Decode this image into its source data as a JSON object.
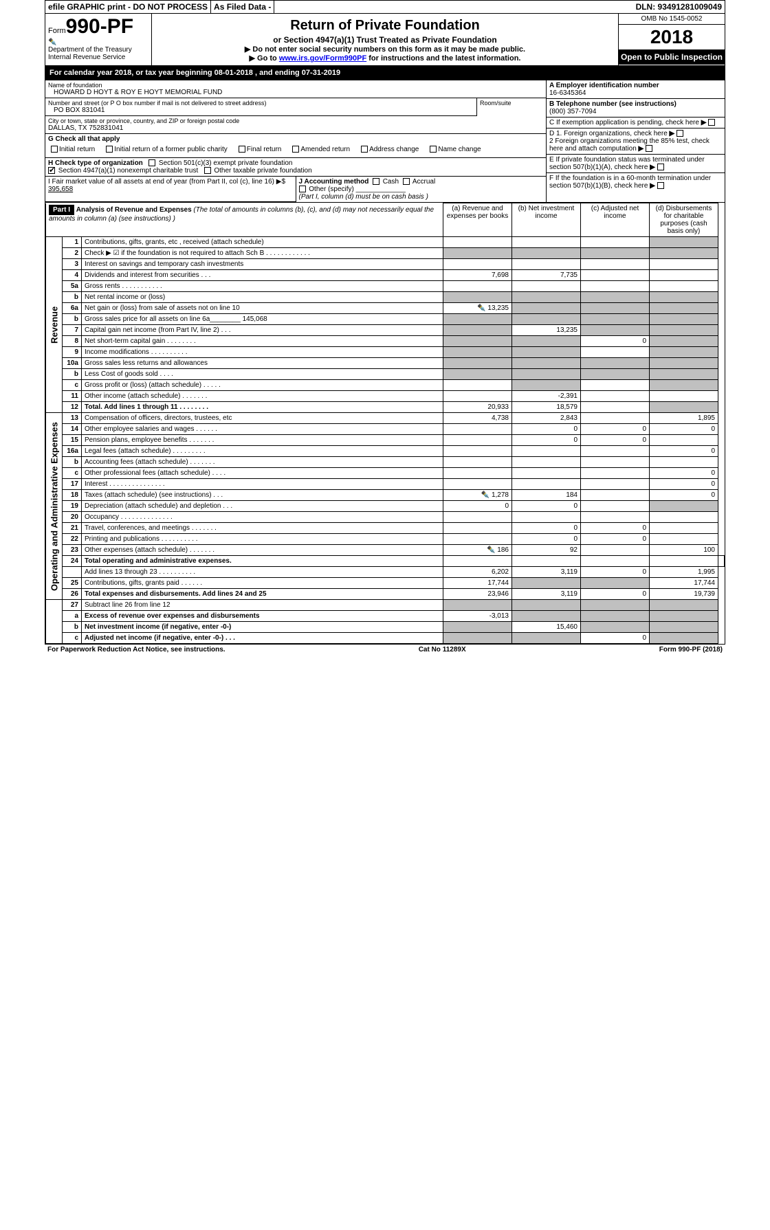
{
  "topbar": {
    "efile": "efile GRAPHIC print - DO NOT PROCESS",
    "asfiled": "As Filed Data -",
    "dln": "DLN: 93491281009049"
  },
  "header": {
    "form_prefix": "Form",
    "form_number": "990-PF",
    "dept": "Department of the Treasury",
    "irs": "Internal Revenue Service",
    "title": "Return of Private Foundation",
    "subtitle": "or Section 4947(a)(1) Trust Treated as Private Foundation",
    "note1": "▶ Do not enter social security numbers on this form as it may be made public.",
    "note2_pre": "▶ Go to ",
    "note2_link": "www.irs.gov/Form990PF",
    "note2_post": " for instructions and the latest information.",
    "omb": "OMB No 1545-0052",
    "year": "2018",
    "open": "Open to Public Inspection"
  },
  "calyear": "For calendar year 2018, or tax year beginning 08-01-2018                              , and ending 07-31-2019",
  "entity": {
    "name_label": "Name of foundation",
    "name": "HOWARD D HOYT & ROY E HOYT MEMORIAL FUND",
    "addr_label": "Number and street (or P O  box number if mail is not delivered to street address)",
    "room_label": "Room/suite",
    "addr": "PO BOX 831041",
    "city_label": "City or town, state or province, country, and ZIP or foreign postal code",
    "city": "DALLAS, TX  752831041",
    "ein_label": "A Employer identification number",
    "ein": "16-6345364",
    "phone_label": "B Telephone number (see instructions)",
    "phone": "(800) 357-7094",
    "c_label": "C If exemption application is pending, check here",
    "d1": "D 1. Foreign organizations, check here",
    "d2": "2 Foreign organizations meeting the 85% test, check here and attach computation",
    "e": "E If private foundation status was terminated under section 507(b)(1)(A), check here",
    "f": "F If the foundation is in a 60-month termination under section 507(b)(1)(B), check here"
  },
  "g": {
    "label": "G Check all that apply",
    "opts": [
      "Initial return",
      "Initial return of a former public charity",
      "Final return",
      "Amended return",
      "Address change",
      "Name change"
    ]
  },
  "h": {
    "label": "H Check type of organization",
    "opt1": "Section 501(c)(3) exempt private foundation",
    "opt2": "Section 4947(a)(1) nonexempt charitable trust",
    "opt3": "Other taxable private foundation"
  },
  "i": {
    "label": "I Fair market value of all assets at end of year (from Part II, col (c), line 16) ▶$ ",
    "value": "395,658"
  },
  "j": {
    "label": "J Accounting method",
    "cash": "Cash",
    "accrual": "Accrual",
    "other": "Other (specify)",
    "note": "(Part I, column (d) must be on cash basis )"
  },
  "part1": {
    "title": "Part I",
    "heading": "Analysis of Revenue and Expenses",
    "heading_note": "(The total of amounts in columns (b), (c), and (d) may not necessarily equal the amounts in column (a) (see instructions) )",
    "col_a": "(a) Revenue and expenses per books",
    "col_b": "(b) Net investment income",
    "col_c": "(c) Adjusted net income",
    "col_d": "(d) Disbursements for charitable purposes (cash basis only)",
    "revenue_label": "Revenue",
    "expenses_label": "Operating and Administrative Expenses"
  },
  "rows": [
    {
      "n": "1",
      "desc": "Contributions, gifts, grants, etc , received (attach schedule)",
      "a": "",
      "b": "",
      "c": "",
      "d": "",
      "d_shade": true
    },
    {
      "n": "2",
      "desc": "Check ▶ ☑ if the foundation is not required to attach Sch B    .   .   .   .   .   .   .   .   .   .   .   .",
      "a": "",
      "b": "",
      "c": "",
      "d": "",
      "all_shade": true
    },
    {
      "n": "3",
      "desc": "Interest on savings and temporary cash investments",
      "a": "",
      "b": "",
      "c": "",
      "d": ""
    },
    {
      "n": "4",
      "desc": "Dividends and interest from securities    .   .   .",
      "a": "7,698",
      "b": "7,735",
      "c": "",
      "d": ""
    },
    {
      "n": "5a",
      "desc": "Gross rents    .   .   .   .   .   .   .   .   .   .   .",
      "a": "",
      "b": "",
      "c": "",
      "d": ""
    },
    {
      "n": "b",
      "desc": "Net rental income or (loss)  ",
      "a": "",
      "b": "",
      "c": "",
      "d": "",
      "all_shade": true,
      "underline": true
    },
    {
      "n": "6a",
      "desc": "Net gain or (loss) from sale of assets not on line 10",
      "a": "13,235",
      "b": "",
      "c": "",
      "d": "",
      "icon": true,
      "b_shade": true,
      "c_shade": true,
      "d_shade": true
    },
    {
      "n": "b",
      "desc": "Gross sales price for all assets on line 6a________ 145,068",
      "a": "",
      "b": "",
      "c": "",
      "d": "",
      "all_shade": true
    },
    {
      "n": "7",
      "desc": "Capital gain net income (from Part IV, line 2)   .   .   .",
      "a": "",
      "b": "13,235",
      "c": "",
      "d": "",
      "a_shade": true,
      "c_shade": true,
      "d_shade": true
    },
    {
      "n": "8",
      "desc": "Net short-term capital gain   .   .   .   .   .   .   .   .",
      "a": "",
      "b": "",
      "c": "0",
      "d": "",
      "a_shade": true,
      "b_shade": true,
      "d_shade": true
    },
    {
      "n": "9",
      "desc": "Income modifications  .   .   .   .   .   .   .   .   .   .",
      "a": "",
      "b": "",
      "c": "",
      "d": "",
      "a_shade": true,
      "b_shade": true,
      "d_shade": true
    },
    {
      "n": "10a",
      "desc": "Gross sales less returns and allowances  ",
      "a": "",
      "b": "",
      "c": "",
      "d": "",
      "all_shade": true,
      "underline": true
    },
    {
      "n": "b",
      "desc": "Less   Cost of goods sold     .   .   .   .  ",
      "a": "",
      "b": "",
      "c": "",
      "d": "",
      "all_shade": true,
      "underline": true
    },
    {
      "n": "c",
      "desc": "Gross profit or (loss) (attach schedule)    .   .   .   .   .",
      "a": "",
      "b": "",
      "c": "",
      "d": "",
      "b_shade": true,
      "d_shade": true
    },
    {
      "n": "11",
      "desc": "Other income (attach schedule)    .   .   .   .   .   .   .",
      "a": "",
      "b": "-2,391",
      "c": "",
      "d": ""
    },
    {
      "n": "12",
      "desc": "Total. Add lines 1 through 11    .   .   .   .   .   .   .   .",
      "a": "20,933",
      "b": "18,579",
      "c": "",
      "d": "",
      "bold": true,
      "d_shade": true
    }
  ],
  "exp_rows": [
    {
      "n": "13",
      "desc": "Compensation of officers, directors, trustees, etc",
      "a": "4,738",
      "b": "2,843",
      "c": "",
      "d": "1,895"
    },
    {
      "n": "14",
      "desc": "Other employee salaries and wages    .   .   .   .   .   .",
      "a": "",
      "b": "0",
      "c": "0",
      "d": "0"
    },
    {
      "n": "15",
      "desc": "Pension plans, employee benefits   .   .   .   .   .   .   .",
      "a": "",
      "b": "0",
      "c": "0",
      "d": ""
    },
    {
      "n": "16a",
      "desc": "Legal fees (attach schedule)  .   .   .   .   .   .   .   .   .",
      "a": "",
      "b": "",
      "c": "",
      "d": "0"
    },
    {
      "n": "b",
      "desc": "Accounting fees (attach schedule)  .   .   .   .   .   .   .",
      "a": "",
      "b": "",
      "c": "",
      "d": ""
    },
    {
      "n": "c",
      "desc": "Other professional fees (attach schedule)    .   .   .   .",
      "a": "",
      "b": "",
      "c": "",
      "d": "0"
    },
    {
      "n": "17",
      "desc": "Interest  .   .   .   .   .   .   .   .   .   .   .   .   .   .   .",
      "a": "",
      "b": "",
      "c": "",
      "d": "0"
    },
    {
      "n": "18",
      "desc": "Taxes (attach schedule) (see instructions)      .   .   .",
      "a": "1,278",
      "b": "184",
      "c": "",
      "d": "0",
      "icon": true
    },
    {
      "n": "19",
      "desc": "Depreciation (attach schedule) and depletion    .   .   .",
      "a": "0",
      "b": "0",
      "c": "",
      "d": "",
      "d_shade": true
    },
    {
      "n": "20",
      "desc": "Occupancy   .   .   .   .   .   .   .   .   .   .   .   .   .   .",
      "a": "",
      "b": "",
      "c": "",
      "d": ""
    },
    {
      "n": "21",
      "desc": "Travel, conferences, and meetings  .   .   .   .   .   .   .",
      "a": "",
      "b": "0",
      "c": "0",
      "d": ""
    },
    {
      "n": "22",
      "desc": "Printing and publications  .   .   .   .   .   .   .   .   .   .",
      "a": "",
      "b": "0",
      "c": "0",
      "d": ""
    },
    {
      "n": "23",
      "desc": "Other expenses (attach schedule)  .   .   .   .   .   .   .",
      "a": "186",
      "b": "92",
      "c": "",
      "d": "100",
      "icon": true
    },
    {
      "n": "24",
      "desc": "Total operating and administrative expenses.",
      "bold": true,
      "noborder": true
    },
    {
      "n": "",
      "desc": "Add lines 13 through 23    .   .   .   .   .   .   .   .   .   .",
      "a": "6,202",
      "b": "3,119",
      "c": "0",
      "d": "1,995"
    },
    {
      "n": "25",
      "desc": "Contributions, gifts, grants paid      .   .   .   .   .   .",
      "a": "17,744",
      "b": "",
      "c": "",
      "d": "17,744",
      "b_shade": true,
      "c_shade": true
    },
    {
      "n": "26",
      "desc": "Total expenses and disbursements. Add lines 24 and 25",
      "a": "23,946",
      "b": "3,119",
      "c": "0",
      "d": "19,739",
      "bold": true
    }
  ],
  "net_rows": [
    {
      "n": "27",
      "desc": "Subtract line 26 from line 12",
      "all_shade": true
    },
    {
      "n": "a",
      "desc": "Excess of revenue over expenses and disbursements",
      "a": "-3,013",
      "bold": true,
      "b_shade": true,
      "c_shade": true,
      "d_shade": true
    },
    {
      "n": "b",
      "desc": "Net investment income (if negative, enter -0-)",
      "b": "15,460",
      "bold": true,
      "a_shade": true,
      "c_shade": true,
      "d_shade": true
    },
    {
      "n": "c",
      "desc": "Adjusted net income (if negative, enter -0-)   .   .   .",
      "c": "0",
      "bold": true,
      "a_shade": true,
      "b_shade": true,
      "d_shade": true
    }
  ],
  "footer": {
    "left": "For Paperwork Reduction Act Notice, see instructions.",
    "center": "Cat No 11289X",
    "right": "Form 990-PF (2018)"
  }
}
